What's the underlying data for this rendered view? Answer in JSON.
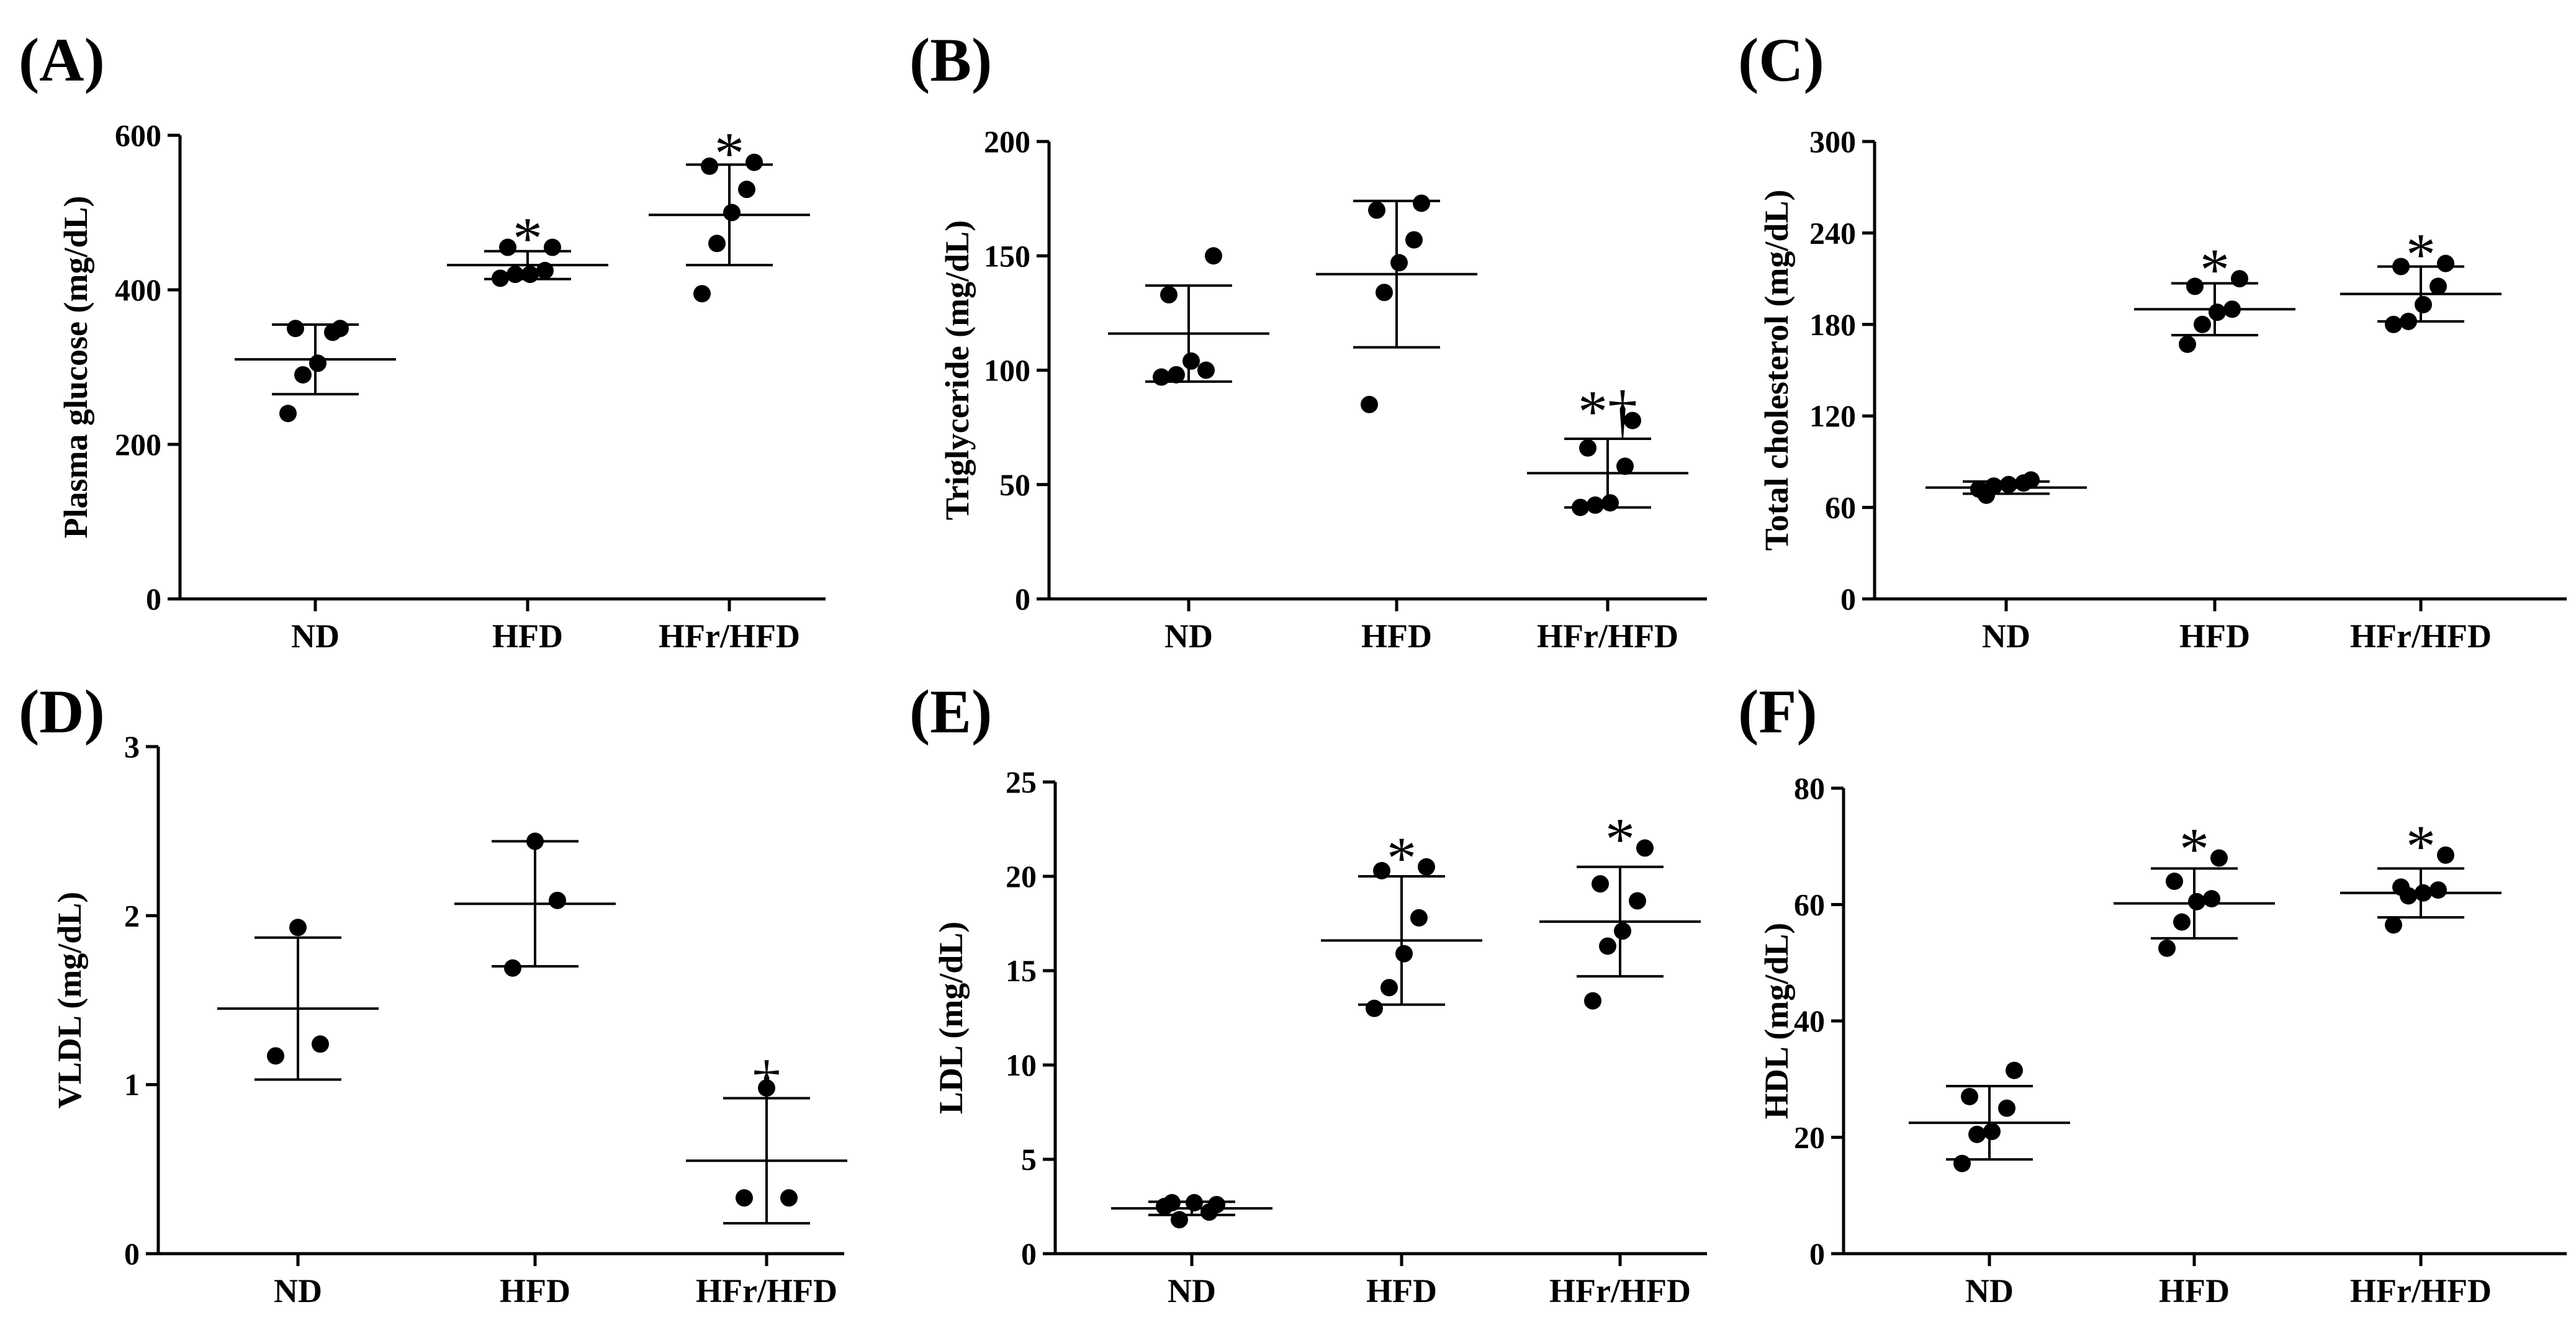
{
  "chart_data": [
    {
      "id": "A",
      "panel_label": "(A)",
      "type": "scatter",
      "ylabel": "Plasma glucose (mg/dL)",
      "ylim": [
        0,
        600
      ],
      "yticks": [
        0,
        200,
        400,
        600
      ],
      "categories": [
        "ND",
        "HFD",
        "HFr/HFD"
      ],
      "groups": [
        {
          "points": [
            240,
            290,
            305,
            345,
            350,
            350
          ],
          "mean": 310,
          "sd": 45,
          "sig": ""
        },
        {
          "points": [
            415,
            420,
            420,
            425,
            455,
            455
          ],
          "mean": 432,
          "sd": 18,
          "sig": "*"
        },
        {
          "points": [
            395,
            460,
            500,
            530,
            560,
            565
          ],
          "mean": 497,
          "sd": 65,
          "sig": "*"
        }
      ]
    },
    {
      "id": "B",
      "panel_label": "(B)",
      "type": "scatter",
      "ylabel": "Triglyceride (mg/dL)",
      "ylim": [
        0,
        200
      ],
      "yticks": [
        0,
        50,
        100,
        150,
        200
      ],
      "categories": [
        "ND",
        "HFD",
        "HFr/HFD"
      ],
      "groups": [
        {
          "points": [
            97,
            98,
            104,
            100,
            133,
            150
          ],
          "mean": 116,
          "sd": 21,
          "sig": ""
        },
        {
          "points": [
            85,
            134,
            147,
            157,
            170,
            173
          ],
          "mean": 142,
          "sd": 32,
          "sig": ""
        },
        {
          "points": [
            40,
            41,
            42,
            58,
            66,
            78
          ],
          "mean": 55,
          "sd": 15,
          "sig": "*†"
        }
      ]
    },
    {
      "id": "C",
      "panel_label": "(C)",
      "type": "scatter",
      "ylabel": "Total cholesterol (mg/dL)",
      "ylim": [
        0,
        300
      ],
      "yticks": [
        0,
        60,
        120,
        180,
        240,
        300
      ],
      "categories": [
        "ND",
        "HFD",
        "HFr/HFD"
      ],
      "groups": [
        {
          "points": [
            72,
            74,
            75,
            76,
            68,
            78
          ],
          "mean": 73,
          "sd": 4,
          "sig": ""
        },
        {
          "points": [
            167,
            180,
            188,
            190,
            205,
            210
          ],
          "mean": 190,
          "sd": 17,
          "sig": "*"
        },
        {
          "points": [
            180,
            182,
            193,
            205,
            218,
            220
          ],
          "mean": 200,
          "sd": 18,
          "sig": "*"
        }
      ]
    },
    {
      "id": "D",
      "panel_label": "(D)",
      "type": "scatter",
      "ylabel": "VLDL (mg/dL)",
      "ylim": [
        0,
        3
      ],
      "yticks": [
        0,
        1,
        2,
        3
      ],
      "categories": [
        "ND",
        "HFD",
        "HFr/HFD"
      ],
      "groups": [
        {
          "points": [
            1.17,
            1.24,
            1.93
          ],
          "mean": 1.45,
          "sd": 0.42,
          "sig": ""
        },
        {
          "points": [
            1.69,
            2.09,
            2.44
          ],
          "mean": 2.07,
          "sd": 0.37,
          "sig": ""
        },
        {
          "points": [
            0.33,
            0.33,
            0.98
          ],
          "mean": 0.55,
          "sd": 0.37,
          "sig": "†"
        }
      ]
    },
    {
      "id": "E",
      "panel_label": "(E)",
      "type": "scatter",
      "ylabel": "LDL (mg/dL)",
      "ylim": [
        0,
        25
      ],
      "yticks": [
        0,
        5,
        10,
        15,
        20,
        25
      ],
      "categories": [
        "ND",
        "HFD",
        "HFr/HFD"
      ],
      "groups": [
        {
          "points": [
            2.5,
            1.8,
            2.7,
            2.2,
            2.7,
            2.6
          ],
          "mean": 2.4,
          "sd": 0.35,
          "sig": ""
        },
        {
          "points": [
            13.0,
            14.1,
            15.9,
            17.8,
            20.3,
            20.5
          ],
          "mean": 16.6,
          "sd": 3.4,
          "sig": "*"
        },
        {
          "points": [
            13.4,
            16.3,
            17.1,
            18.7,
            19.6,
            21.5
          ],
          "mean": 17.6,
          "sd": 2.9,
          "sig": "*"
        }
      ]
    },
    {
      "id": "F",
      "panel_label": "(F)",
      "type": "scatter",
      "ylabel": "HDL (mg/dL)",
      "ylim": [
        0,
        80
      ],
      "yticks": [
        0,
        20,
        40,
        60,
        80
      ],
      "categories": [
        "ND",
        "HFD",
        "HFr/HFD"
      ],
      "groups": [
        {
          "points": [
            15.5,
            20.5,
            21.0,
            25.0,
            27.0,
            31.5
          ],
          "mean": 22.5,
          "sd": 6.3,
          "sig": ""
        },
        {
          "points": [
            52.5,
            57.0,
            60.5,
            61.0,
            64.0,
            68.0
          ],
          "mean": 60.2,
          "sd": 6.0,
          "sig": "*"
        },
        {
          "points": [
            56.5,
            61.5,
            62.0,
            62.5,
            63.0,
            68.5
          ],
          "mean": 62.0,
          "sd": 4.2,
          "sig": "*"
        }
      ]
    }
  ]
}
